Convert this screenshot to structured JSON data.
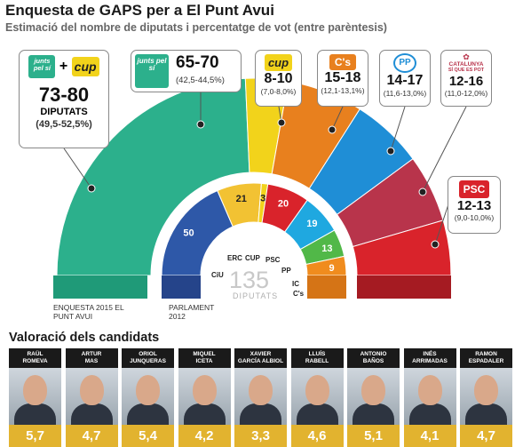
{
  "title": "Enquesta de GAPS per a El Punt Avui",
  "subtitle": "Estimació del nombre de diputats i percentatge de vot (entre parèntesis)",
  "chart_data": [
    {
      "type": "semicircle-parliament",
      "center_label": {
        "number": "135",
        "text": "DIPUTATS"
      },
      "outer_caption": "ENQUESTA 2015 EL PUNT AVUI",
      "outer": [
        {
          "party": "Junts pel Sí + CUP",
          "logo_a": "junts pel sí",
          "logo_b": "cup",
          "seats": "73-80",
          "seats_label": "DIPUTATS",
          "pct": "(49,5-52,5%)"
        },
        {
          "party": "Junts pel Sí",
          "logo": "junts pel sí",
          "seats": "65-70",
          "pct": "(42,5-44,5%)",
          "color": "#2cb08c"
        },
        {
          "party": "CUP",
          "logo": "cup",
          "seats": "8-10",
          "pct": "(7,0-8,0%)",
          "color": "#f2d31b"
        },
        {
          "party": "C's",
          "logo": "C's",
          "seats": "15-18",
          "pct": "(12,1-13,1%)",
          "color": "#e8801e"
        },
        {
          "party": "PP",
          "logo": "PP",
          "seats": "14-17",
          "pct": "(11,6-13,0%)",
          "color": "#1f8ed6"
        },
        {
          "party": "Catalunya Sí que es Pot",
          "logo_line1": "CATALUNYA",
          "logo_line2": "SÍ QUE ES POT",
          "seats": "12-16",
          "pct": "(11,0-12,0%)",
          "color": "#b8344b"
        },
        {
          "party": "PSC",
          "logo": "PSC",
          "seats": "12-13",
          "pct": "(9,0-10,0%)",
          "color": "#d9232b"
        }
      ],
      "inner_caption": "PARLAMENT 2012",
      "inner": [
        {
          "party": "CiU",
          "seats": 50,
          "color": "#2e58a8"
        },
        {
          "party": "ERC",
          "seats": 21,
          "color": "#f2c233"
        },
        {
          "party": "CUP",
          "seats": 3,
          "color": "#f2d31b"
        },
        {
          "party": "PSC",
          "seats": 20,
          "color": "#d9232b"
        },
        {
          "party": "PP",
          "seats": 19,
          "color": "#1fa8e0"
        },
        {
          "party": "IC",
          "seats": 13,
          "color": "#51b848"
        },
        {
          "party": "C's",
          "seats": 9,
          "color": "#f08c1e"
        }
      ]
    },
    {
      "type": "table",
      "title": "Valoració dels candidats",
      "rows": [
        {
          "first": "RAÜL",
          "last": "ROMEVA",
          "score": "5,7"
        },
        {
          "first": "ARTUR",
          "last": "MAS",
          "score": "4,7"
        },
        {
          "first": "ORIOL",
          "last": "JUNQUERAS",
          "score": "5,4"
        },
        {
          "first": "MIQUEL",
          "last": "ICETA",
          "score": "4,2"
        },
        {
          "first": "XAVIER",
          "last": "GARCÍA ALBIOL",
          "score": "3,3"
        },
        {
          "first": "LLUÍS",
          "last": "RABELL",
          "score": "4,6"
        },
        {
          "first": "ANTONIO",
          "last": "BAÑOS",
          "score": "5,1"
        },
        {
          "first": "INÉS",
          "last": "ARRIMADAS",
          "score": "4,1"
        },
        {
          "first": "RAMON",
          "last": "ESPADALER",
          "score": "4,7"
        }
      ]
    }
  ]
}
